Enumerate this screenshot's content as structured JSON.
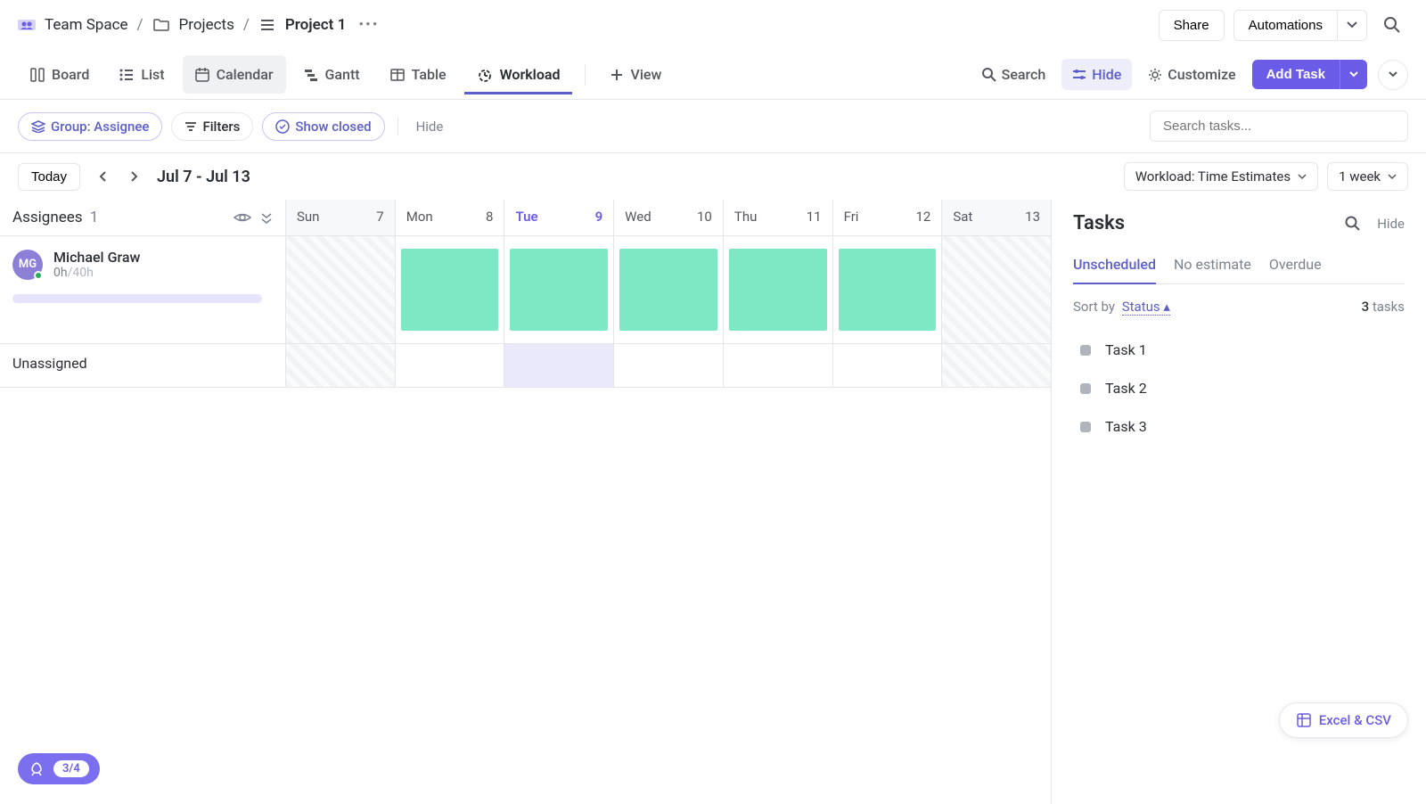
{
  "breadcrumb": {
    "space": "Team Space",
    "folder": "Projects",
    "project": "Project 1"
  },
  "topActions": {
    "share": "Share",
    "automations": "Automations"
  },
  "views": {
    "board": "Board",
    "list": "List",
    "calendar": "Calendar",
    "gantt": "Gantt",
    "table": "Table",
    "workload": "Workload",
    "addView": "View"
  },
  "viewActions": {
    "search": "Search",
    "hide": "Hide",
    "customize": "Customize",
    "addTask": "Add Task"
  },
  "filters": {
    "group": "Group: Assignee",
    "filters": "Filters",
    "showClosed": "Show closed",
    "hide": "Hide",
    "searchPlaceholder": "Search tasks..."
  },
  "dateNav": {
    "today": "Today",
    "range": "Jul 7 - Jul 13",
    "workloadMode": "Workload: Time Estimates",
    "span": "1 week"
  },
  "workload": {
    "sideTitle": "Assignees",
    "sideCount": "1",
    "days": [
      {
        "name": "Sun",
        "num": "7",
        "weekend": true,
        "today": false
      },
      {
        "name": "Mon",
        "num": "8",
        "weekend": false,
        "today": false
      },
      {
        "name": "Tue",
        "num": "9",
        "weekend": false,
        "today": true
      },
      {
        "name": "Wed",
        "num": "10",
        "weekend": false,
        "today": false
      },
      {
        "name": "Thu",
        "num": "11",
        "weekend": false,
        "today": false
      },
      {
        "name": "Fri",
        "num": "12",
        "weekend": false,
        "today": false
      },
      {
        "name": "Sat",
        "num": "13",
        "weekend": true,
        "today": false
      }
    ],
    "assignee": {
      "initials": "MG",
      "name": "Michael Graw",
      "hoursUsed": "0h",
      "hoursTotal": "/40h"
    },
    "unassigned": "Unassigned",
    "capacityColor": "#7de8c3",
    "todayHighlight": "#eae8fb"
  },
  "tasksPanel": {
    "title": "Tasks",
    "hide": "Hide",
    "tabs": {
      "unscheduled": "Unscheduled",
      "noEstimate": "No estimate",
      "overdue": "Overdue"
    },
    "sortBy": "Sort by",
    "sortField": "Status",
    "countNum": "3",
    "countLabel": "tasks",
    "tasks": [
      "Task 1",
      "Task 2",
      "Task 3"
    ]
  },
  "floating": {
    "excel": "Excel & CSV",
    "onboarding": "3/4"
  },
  "colors": {
    "primary": "#6b5ce7",
    "purpleLight": "#eeeefb",
    "border": "#e4e6ea",
    "textMuted": "#7c828d"
  }
}
